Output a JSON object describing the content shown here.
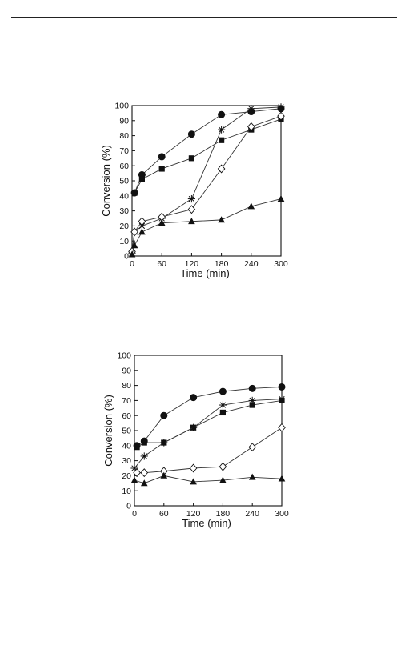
{
  "chart_data": [
    {
      "type": "line",
      "xlabel": "Time (min)",
      "ylabel": "Conversion (%)",
      "xlim": [
        0,
        300
      ],
      "ylim": [
        0,
        100
      ],
      "xticks": [
        0,
        60,
        120,
        180,
        240,
        300
      ],
      "yticks": [
        0,
        10,
        20,
        30,
        40,
        50,
        60,
        70,
        80,
        90,
        100
      ],
      "grid": false,
      "series": [
        {
          "marker": "circle-filled",
          "x": [
            5,
            20,
            60,
            120,
            180,
            240,
            300
          ],
          "y": [
            42,
            54,
            66,
            81,
            94,
            96,
            98
          ]
        },
        {
          "marker": "square-filled",
          "x": [
            5,
            20,
            60,
            120,
            180,
            240,
            300
          ],
          "y": [
            42,
            51,
            58,
            65,
            77,
            84,
            91
          ]
        },
        {
          "marker": "asterisk",
          "x": [
            0,
            5,
            20,
            60,
            120,
            180,
            240,
            300
          ],
          "y": [
            2,
            16,
            20,
            25,
            38,
            84,
            98,
            99
          ]
        },
        {
          "marker": "diamond-open",
          "x": [
            0,
            5,
            20,
            60,
            120,
            180,
            240,
            300
          ],
          "y": [
            3,
            16,
            23,
            26,
            31,
            58,
            86,
            93
          ]
        },
        {
          "marker": "triangle-filled",
          "x": [
            0,
            5,
            20,
            60,
            120,
            180,
            240,
            300
          ],
          "y": [
            1,
            7,
            16,
            22,
            23,
            24,
            33,
            38
          ]
        }
      ]
    },
    {
      "type": "line",
      "xlabel": "Time (min)",
      "ylabel": "Conversion (%)",
      "xlim": [
        0,
        300
      ],
      "ylim": [
        0,
        100
      ],
      "xticks": [
        0,
        60,
        120,
        180,
        240,
        300
      ],
      "yticks": [
        0,
        10,
        20,
        30,
        40,
        50,
        60,
        70,
        80,
        90,
        100
      ],
      "grid": false,
      "series": [
        {
          "marker": "circle-filled",
          "x": [
            5,
            20,
            60,
            120,
            180,
            240,
            300
          ],
          "y": [
            40,
            43,
            60,
            72,
            76,
            78,
            79
          ]
        },
        {
          "marker": "square-filled",
          "x": [
            5,
            20,
            60,
            120,
            180,
            240,
            300
          ],
          "y": [
            39,
            42,
            42,
            52,
            62,
            67,
            70
          ]
        },
        {
          "marker": "asterisk",
          "x": [
            0,
            20,
            60,
            120,
            180,
            240,
            300
          ],
          "y": [
            25,
            33,
            42,
            52,
            67,
            70,
            71
          ]
        },
        {
          "marker": "diamond-open",
          "x": [
            5,
            20,
            60,
            120,
            180,
            240,
            300
          ],
          "y": [
            22,
            22,
            23,
            25,
            26,
            39,
            52
          ]
        },
        {
          "marker": "triangle-filled",
          "x": [
            0,
            20,
            60,
            120,
            180,
            240,
            300
          ],
          "y": [
            17,
            15,
            20,
            16,
            17,
            19,
            18
          ]
        }
      ]
    }
  ]
}
